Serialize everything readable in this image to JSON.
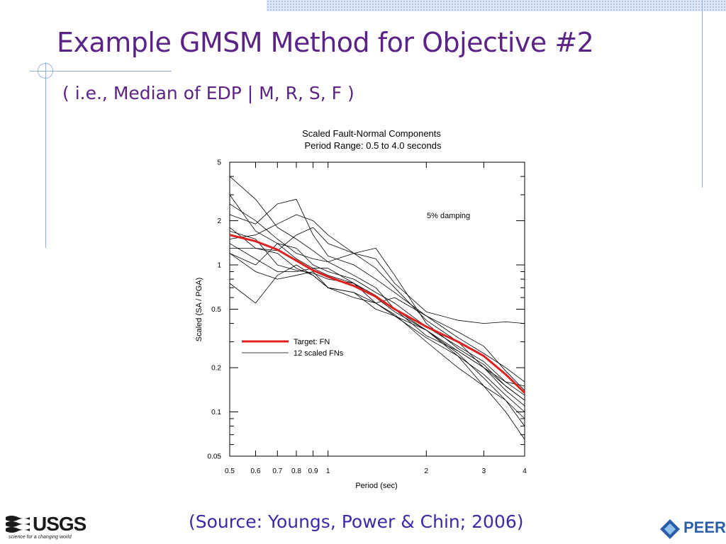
{
  "slide": {
    "title": "Example GMSM Method for Objective #2",
    "subtitle": "( i.e., Median of EDP | M, R, S, F )",
    "source": "(Source: Youngs, Power & Chin; 2006)",
    "logo_left": {
      "name": "USGS",
      "tagline": "science for a changing world"
    },
    "logo_right": {
      "name": "PEER"
    }
  },
  "colors": {
    "title": "#5b2386",
    "source": "#3a2aa8",
    "target_line": "#e02020",
    "scaled_lines": "#000000"
  },
  "chart_data": {
    "type": "line",
    "title_line1": "Scaled Fault-Normal Components",
    "title_line2": "Period Range: 0.5 to 4.0 seconds",
    "xlabel": "Period (sec)",
    "ylabel": "Scaled (SA / PGA)",
    "annotation": "5% damping",
    "xscale": "log",
    "yscale": "log",
    "xlim": [
      0.5,
      4
    ],
    "ylim": [
      0.05,
      5
    ],
    "xticks": [
      0.5,
      0.6,
      0.7,
      0.8,
      0.9,
      1,
      2,
      3,
      4
    ],
    "xtick_labels": [
      "0.5",
      "0.6",
      "0.7",
      "0.8",
      "0.9",
      "1",
      "2",
      "3",
      "4"
    ],
    "yticks": [
      0.05,
      0.1,
      0.2,
      0.5,
      1,
      2,
      5
    ],
    "ytick_labels": [
      "0.05",
      "0.1",
      "0.2",
      "0.5",
      "1",
      "2",
      "5"
    ],
    "legend_placement": "lower-left",
    "grid": false,
    "x": [
      0.5,
      0.6,
      0.7,
      0.8,
      0.9,
      1.0,
      1.2,
      1.4,
      1.6,
      2.0,
      2.5,
      3.0,
      3.5,
      4.0
    ],
    "target": {
      "name": "Target: FN",
      "values": [
        1.6,
        1.45,
        1.27,
        1.07,
        0.92,
        0.83,
        0.72,
        0.61,
        0.5,
        0.38,
        0.3,
        0.24,
        0.18,
        0.135
      ]
    },
    "scaled_legend_name": "12 scaled FNs",
    "scaled": [
      {
        "values": [
          4.0,
          2.8,
          1.8,
          1.5,
          1.25,
          1.05,
          0.85,
          0.7,
          0.5,
          0.36,
          0.26,
          0.2,
          0.15,
          0.12
        ]
      },
      {
        "values": [
          3.0,
          1.7,
          1.4,
          1.1,
          0.95,
          0.95,
          0.75,
          0.55,
          0.45,
          0.32,
          0.24,
          0.18,
          0.13,
          0.1
        ]
      },
      {
        "values": [
          2.2,
          1.9,
          2.6,
          2.8,
          1.6,
          1.15,
          1.0,
          0.8,
          0.65,
          0.45,
          0.32,
          0.25,
          0.2,
          0.16
        ]
      },
      {
        "values": [
          1.8,
          1.3,
          1.25,
          1.6,
          1.8,
          1.4,
          1.2,
          1.1,
          0.75,
          0.48,
          0.42,
          0.4,
          0.41,
          0.4
        ]
      },
      {
        "values": [
          1.7,
          1.5,
          1.0,
          0.92,
          0.88,
          0.8,
          0.75,
          0.62,
          0.5,
          0.33,
          0.26,
          0.2,
          0.16,
          0.15
        ]
      },
      {
        "values": [
          1.5,
          1.6,
          1.9,
          2.2,
          2.0,
          1.6,
          1.2,
          0.95,
          0.7,
          0.42,
          0.3,
          0.2,
          0.14,
          0.11
        ]
      },
      {
        "values": [
          1.4,
          1.1,
          0.9,
          0.9,
          0.95,
          0.85,
          0.75,
          0.6,
          0.48,
          0.36,
          0.25,
          0.17,
          0.12,
          0.09
        ]
      },
      {
        "values": [
          1.3,
          1.3,
          1.2,
          0.95,
          0.85,
          0.7,
          0.6,
          0.55,
          0.46,
          0.3,
          0.2,
          0.15,
          0.12,
          0.08
        ]
      },
      {
        "values": [
          1.2,
          1.0,
          1.4,
          1.3,
          1.0,
          0.9,
          0.8,
          0.65,
          0.55,
          0.38,
          0.28,
          0.22,
          0.16,
          0.13
        ]
      },
      {
        "values": [
          0.75,
          0.55,
          0.85,
          1.0,
          0.85,
          0.7,
          0.65,
          0.55,
          0.6,
          0.45,
          0.35,
          0.28,
          0.19,
          0.14
        ]
      },
      {
        "values": [
          1.2,
          0.9,
          0.8,
          0.85,
          0.9,
          0.7,
          0.65,
          0.5,
          0.45,
          0.36,
          0.24,
          0.15,
          0.1,
          0.065
        ]
      },
      {
        "values": [
          2.6,
          2.0,
          1.5,
          1.2,
          1.1,
          1.05,
          1.2,
          1.3,
          0.85,
          0.4,
          0.27,
          0.21,
          0.15,
          0.12
        ]
      }
    ]
  }
}
